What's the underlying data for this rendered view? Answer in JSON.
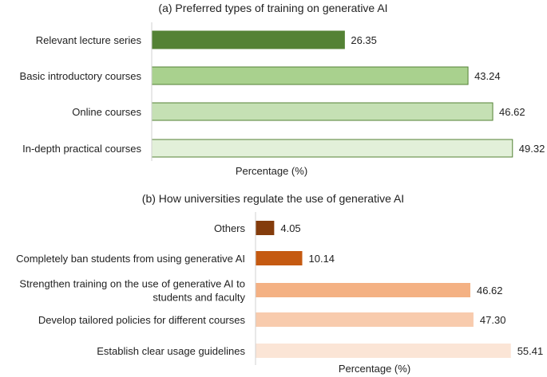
{
  "chart_data": [
    {
      "type": "bar",
      "orientation": "horizontal",
      "title": "(a) Preferred types of training on generative AI",
      "xlabel": "Percentage (%)",
      "ylabel": "",
      "categories": [
        "Relevant lecture series",
        "Basic introductory courses",
        "Online courses",
        "In-depth practical courses"
      ],
      "values": [
        26.35,
        43.24,
        46.62,
        49.32
      ],
      "value_labels": [
        "26.35",
        "43.24",
        "46.62",
        "49.32"
      ],
      "colors": [
        "#548235",
        "#a9d18e",
        "#c5e0b4",
        "#e2f0d9"
      ],
      "stroke": "#548235",
      "xlim": [
        0,
        50
      ],
      "grid": false,
      "legend": "none"
    },
    {
      "type": "bar",
      "orientation": "horizontal",
      "title": "(b) How universities regulate the use of generative AI",
      "xlabel": "Percentage (%)",
      "ylabel": "",
      "categories": [
        "Others",
        "Completely ban students from using generative AI",
        "Strengthen training on the use of generative AI to students and faculty",
        "Develop tailored policies for different courses",
        "Establish clear usage guidelines"
      ],
      "category_lines": [
        [
          "Others"
        ],
        [
          "Completely ban students from using generative AI"
        ],
        [
          "Strengthen training on the use of generative AI to",
          "students and faculty"
        ],
        [
          "Develop tailored policies for different courses"
        ],
        [
          "Establish clear usage guidelines"
        ]
      ],
      "values": [
        4.05,
        10.14,
        46.62,
        47.3,
        55.41
      ],
      "value_labels": [
        "4.05",
        "10.14",
        "46.62",
        "47.30",
        "55.41"
      ],
      "colors": [
        "#843c0c",
        "#c55a11",
        "#f4b183",
        "#f8cbad",
        "#fbe5d6"
      ],
      "stroke": "none",
      "xlim": [
        0,
        56.5
      ],
      "grid": false,
      "legend": "none"
    }
  ]
}
